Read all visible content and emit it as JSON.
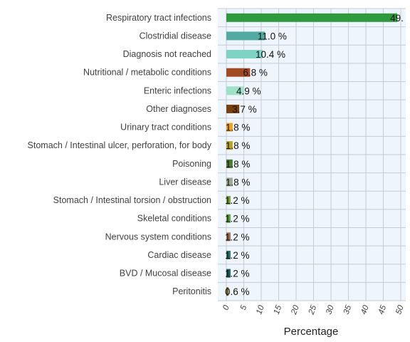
{
  "chart_data": {
    "type": "bar",
    "orientation": "horizontal",
    "xlabel": "Percentage",
    "ylabel": "",
    "xlim": [
      0,
      50
    ],
    "x_ticks": [
      0,
      5,
      10,
      15,
      20,
      25,
      30,
      35,
      40,
      45,
      50
    ],
    "tick_label_rotation": "rotated, italic",
    "grid": true,
    "legend": "none",
    "plot_background": "#eef5fc",
    "grid_color": "#c5ccd4",
    "categories": [
      "Respiratory tract infections",
      "Clostridial disease",
      "Diagnosis not reached",
      "Nutritional / metabolic conditions",
      "Enteric infections",
      "Other diagnoses",
      "Urinary tract conditions",
      "Stomach / Intestinal ulcer, perforation, for body",
      "Poisoning",
      "Liver disease",
      "Stomach / Intestinal torsion / obstruction",
      "Skeletal conditions",
      "Nervous system conditions",
      "Cardiac disease",
      "BVD / Mucosal disease",
      "Peritonitis"
    ],
    "values": [
      49.0,
      11.0,
      10.4,
      6.8,
      4.9,
      3.7,
      1.8,
      1.8,
      1.8,
      1.8,
      1.2,
      1.2,
      1.2,
      1.2,
      1.2,
      0.6
    ],
    "value_labels": [
      "49.",
      "11.0 %",
      "10.4 %",
      "6.8 %",
      "4.9 %",
      "3.7 %",
      "1.8 %",
      "1.8 %",
      "1.8 %",
      "1.8 %",
      "1.2 %",
      "1.2 %",
      "1.2 %",
      "1.2 %",
      "1.2 %",
      "0.6 %"
    ],
    "colors": [
      "#2e9a3e",
      "#52aaa3",
      "#7ed3c4",
      "#a24a22",
      "#9ee0c8",
      "#7a4010",
      "#f0a020",
      "#b8a020",
      "#4f7a35",
      "#9aa890",
      "#7aa038",
      "#58a040",
      "#a07050",
      "#2a6e6a",
      "#1e5e62",
      "#6a6020"
    ]
  }
}
